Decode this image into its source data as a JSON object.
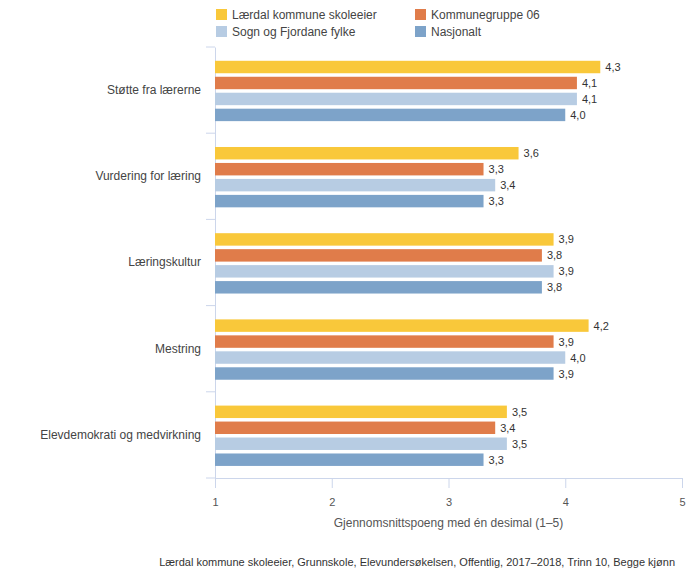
{
  "chart_data": {
    "type": "bar",
    "orientation": "horizontal",
    "data_labels": true,
    "grid": false,
    "legend": "top",
    "categories": [
      "Støtte fra lærerne",
      "Vurdering for læring",
      "Læringskultur",
      "Mestring",
      "Elevdemokrati og medvirkning"
    ],
    "series": [
      {
        "name": "Lærdal kommune skoleeier",
        "color": "#f9c83a",
        "values": [
          4.3,
          3.6,
          3.9,
          4.2,
          3.5
        ],
        "value_labels": [
          "4,3",
          "3,6",
          "3,9",
          "4,2",
          "3,5"
        ]
      },
      {
        "name": "Kommunegruppe 06",
        "color": "#e07c4a",
        "values": [
          4.1,
          3.3,
          3.8,
          3.9,
          3.4
        ],
        "value_labels": [
          "4,1",
          "3,3",
          "3,8",
          "3,9",
          "3,4"
        ]
      },
      {
        "name": "Sogn og Fjordane fylke",
        "color": "#b7cce3",
        "values": [
          4.1,
          3.4,
          3.9,
          4.0,
          3.5
        ],
        "value_labels": [
          "4,1",
          "3,4",
          "3,9",
          "4,0",
          "3,5"
        ]
      },
      {
        "name": "Nasjonalt",
        "color": "#7da3c9",
        "values": [
          4.0,
          3.3,
          3.8,
          3.9,
          3.3
        ],
        "value_labels": [
          "4,0",
          "3,3",
          "3,8",
          "3,9",
          "3,3"
        ]
      }
    ],
    "xlim": [
      1,
      5
    ],
    "xticks": [
      1,
      2,
      3,
      4,
      5
    ],
    "x_label": "Gjennomsnittspoeng med én desimal (1–5)",
    "annotations": [
      "Lærdal kommune skoleeier, Grunnskole, Elevundersøkelsen, Offentlig, 2017–2018, Trinn 10, Begge kjønn"
    ]
  }
}
